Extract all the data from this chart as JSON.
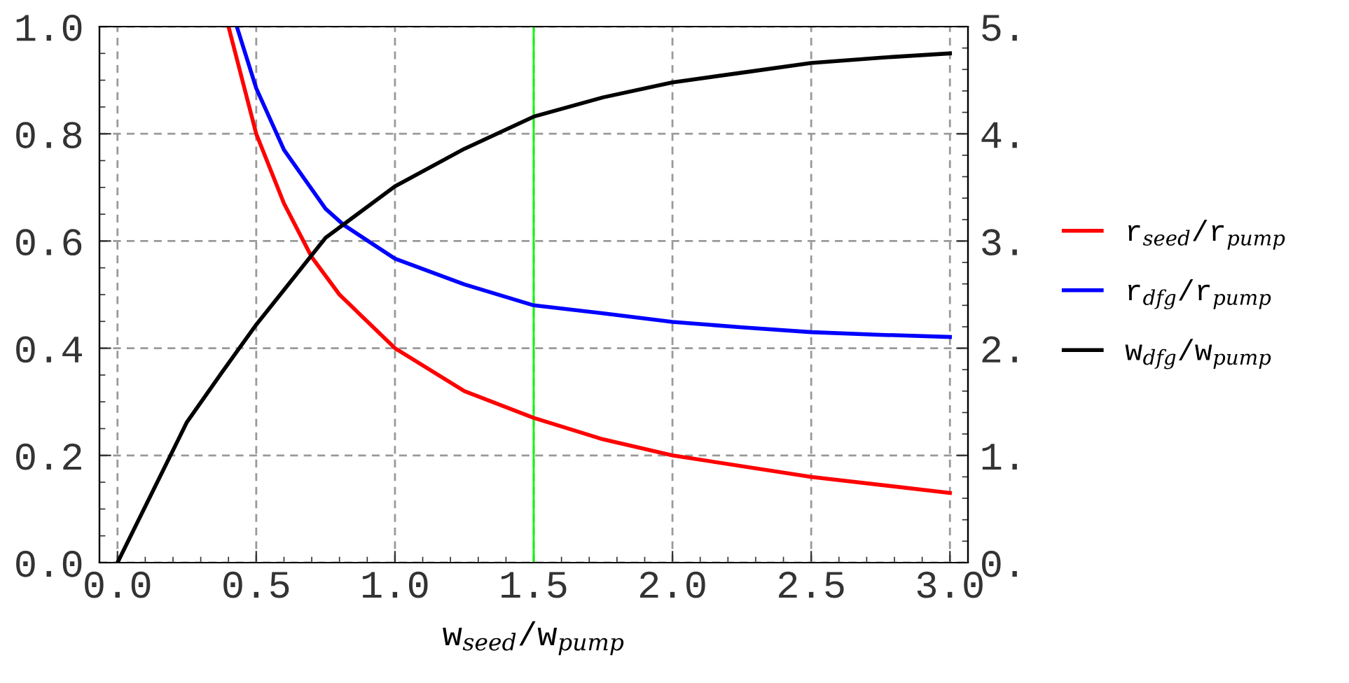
{
  "chart_data": {
    "type": "line",
    "xlabel": "w$_{seed}$/w$_{pump}$",
    "xlim": [
      -0.065,
      3.065
    ],
    "ylim": [
      0,
      1
    ],
    "y2lim": [
      0,
      5
    ],
    "xticks": [
      {
        "value": 0,
        "label": "0.0"
      },
      {
        "value": 0.5,
        "label": "0.5"
      },
      {
        "value": 1,
        "label": "1.0"
      },
      {
        "value": 1.5,
        "label": "1.5"
      },
      {
        "value": 2,
        "label": "2.0"
      },
      {
        "value": 2.5,
        "label": "2.5"
      },
      {
        "value": 3,
        "label": "3.0"
      }
    ],
    "yticks": [
      {
        "value": 0,
        "label": "0.0"
      },
      {
        "value": 0.2,
        "label": "0.2"
      },
      {
        "value": 0.4,
        "label": "0.4"
      },
      {
        "value": 0.6,
        "label": "0.6"
      },
      {
        "value": 0.8,
        "label": "0.8"
      },
      {
        "value": 1,
        "label": "1.0"
      }
    ],
    "y2ticks": [
      {
        "value": 0,
        "label": "0."
      },
      {
        "value": 1,
        "label": "1."
      },
      {
        "value": 2,
        "label": "2."
      },
      {
        "value": 3,
        "label": "3."
      },
      {
        "value": 4,
        "label": "4."
      },
      {
        "value": 5,
        "label": "5."
      }
    ],
    "grid": true,
    "legend": "right",
    "line_style": "solid",
    "marker": "none",
    "ref_lines": [
      {
        "axis": "x",
        "value": 1.5,
        "color": "#00ff00",
        "line_style": "solid"
      }
    ],
    "series": [
      {
        "name": "r$_{seed}$/r$_{pump}$",
        "color": "#ff0000",
        "x": [
          0.4,
          0.5,
          0.6,
          0.7,
          0.8,
          1.0,
          1.25,
          1.5,
          1.75,
          2.0,
          2.5,
          3.0
        ],
        "values": [
          1.0,
          0.8,
          0.67,
          0.57,
          0.5,
          0.4,
          0.32,
          0.27,
          0.23,
          0.2,
          0.16,
          0.13
        ]
      },
      {
        "name": "r$_{dfg}$/r$_{pump}$",
        "color": "#0000ff",
        "x": [
          0.43,
          0.5,
          0.6,
          0.75,
          0.815,
          1.0,
          1.25,
          1.5,
          1.75,
          2.0,
          2.25,
          2.5,
          2.75,
          3.0
        ],
        "values": [
          1.0,
          0.885,
          0.77,
          0.66,
          0.63,
          0.567,
          0.519,
          0.48,
          0.465,
          0.449,
          0.439,
          0.43,
          0.425,
          0.421
        ]
      },
      {
        "name": "w$_{dfg}$/w$_{pump}$",
        "color": "#000000",
        "axis": "y2",
        "x": [
          0.0,
          0.25,
          0.375,
          0.5,
          0.75,
          1.0,
          1.25,
          1.5,
          1.75,
          2.0,
          2.25,
          2.5,
          2.75,
          3.0
        ],
        "values": [
          0.0,
          1.31,
          1.77,
          2.22,
          3.03,
          3.51,
          3.86,
          4.16,
          4.34,
          4.48,
          4.57,
          4.66,
          4.71,
          4.75
        ]
      }
    ]
  }
}
